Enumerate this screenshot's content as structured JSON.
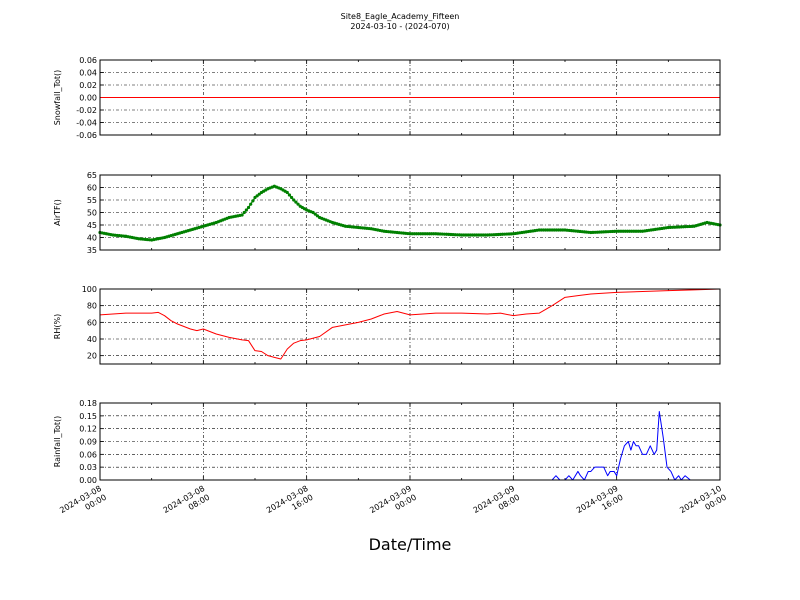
{
  "chart_data": {
    "title": "Site8_Eagle_Academy_Fifteen",
    "subtitle": "2024-03-10 - (2024-070)",
    "xlabel": "Date/Time",
    "x_range": [
      "2024-03-08 00:00",
      "2024-03-10 00:00"
    ],
    "x_ticks": [
      {
        "l1": "2024-03-08",
        "l2": "00:00"
      },
      {
        "l1": "2024-03-08",
        "l2": "08:00"
      },
      {
        "l1": "2024-03-08",
        "l2": "16:00"
      },
      {
        "l1": "2024-03-09",
        "l2": "00:00"
      },
      {
        "l1": "2024-03-09",
        "l2": "08:00"
      },
      {
        "l1": "2024-03-09",
        "l2": "16:00"
      },
      {
        "l1": "2024-03-10",
        "l2": "00:00"
      }
    ],
    "panels": [
      {
        "type": "line",
        "ylabel": "Snowfall_Tot()",
        "color": "#ff0000",
        "marker": false,
        "ylim": [
          -0.06,
          0.06
        ],
        "yticks": [
          "-0.06",
          "-0.04",
          "-0.02",
          "0.00",
          "0.02",
          "0.04",
          "0.06"
        ],
        "grid": true,
        "x_hours": [
          0,
          48
        ],
        "values": [
          0.0,
          0.0
        ]
      },
      {
        "type": "line",
        "ylabel": "AirTF()",
        "color": "#008000",
        "marker": true,
        "ylim": [
          35,
          65
        ],
        "yticks": [
          "35",
          "40",
          "45",
          "50",
          "55",
          "60",
          "65"
        ],
        "grid": true,
        "x_hours": [
          0,
          1,
          2,
          3,
          4,
          5,
          6,
          7,
          8,
          9,
          10,
          11,
          11.5,
          12,
          12.5,
          13,
          13.5,
          14,
          14.5,
          15,
          15.5,
          16,
          16.5,
          17,
          18,
          19,
          20,
          21,
          22,
          23,
          24,
          26,
          28,
          30,
          32,
          34,
          36,
          38,
          40,
          42,
          44,
          46,
          47,
          48
        ],
        "values": [
          42,
          41,
          40.5,
          39.5,
          39,
          40,
          41.5,
          43,
          44.5,
          46,
          48,
          49,
          52,
          56,
          58,
          59.5,
          60.5,
          59.5,
          58,
          55,
          52.5,
          51,
          50,
          48,
          46,
          44.5,
          44,
          43.5,
          42.5,
          42,
          41.5,
          41.5,
          41,
          41,
          41.5,
          43,
          43,
          42,
          42.5,
          42.5,
          44,
          44.5,
          46,
          45
        ]
      },
      {
        "type": "line",
        "ylabel": "RH(%)",
        "color": "#ff0000",
        "marker": false,
        "ylim": [
          10,
          100
        ],
        "yticks": [
          "20",
          "40",
          "60",
          "80",
          "100"
        ],
        "grid": true,
        "x_hours": [
          0,
          2,
          4,
          4.5,
          5,
          5.5,
          6,
          7,
          7.5,
          8,
          9,
          10,
          11,
          11.5,
          12,
          12.5,
          13,
          13.5,
          14,
          14.5,
          15,
          15.5,
          16,
          17,
          18,
          19,
          20,
          21,
          22,
          23,
          24,
          26,
          28,
          30,
          31,
          32,
          33,
          34,
          35,
          36,
          37,
          38,
          40,
          42,
          44,
          46,
          48
        ],
        "values": [
          69,
          71,
          71,
          72,
          68,
          62,
          58,
          52,
          50,
          52,
          46,
          42,
          39,
          38,
          26,
          25,
          20,
          18,
          16,
          28,
          35,
          38,
          39,
          43,
          54,
          57,
          60,
          64,
          70,
          73,
          69,
          71,
          71,
          70,
          71,
          68,
          70,
          71,
          80,
          90,
          92,
          94,
          96,
          97,
          98,
          99,
          100
        ]
      },
      {
        "type": "line",
        "ylabel": "Rainfall_Tot()",
        "color": "#0000ff",
        "marker": false,
        "ylim": [
          0,
          0.18
        ],
        "yticks": [
          "0.00",
          "0.03",
          "0.06",
          "0.09",
          "0.12",
          "0.15",
          "0.18"
        ],
        "grid": true,
        "x_hours": [
          0,
          35,
          35.3,
          35.6,
          36,
          36.3,
          36.6,
          37,
          37.2,
          37.5,
          37.8,
          38,
          38.3,
          38.5,
          39,
          39.3,
          39.5,
          39.8,
          40,
          40.3,
          40.6,
          40.9,
          41.1,
          41.3,
          41.5,
          41.7,
          42,
          42.3,
          42.6,
          42.9,
          43.1,
          43.3,
          43.6,
          43.9,
          44.2,
          44.5,
          44.8,
          45,
          45.3,
          45.7,
          46,
          46.3,
          46.7,
          47,
          47.3,
          47.6,
          48
        ],
        "values": [
          0,
          0,
          0.01,
          0,
          0,
          0.01,
          0,
          0.02,
          0.01,
          0,
          0.02,
          0.02,
          0.03,
          0.03,
          0.03,
          0.01,
          0.02,
          0.02,
          0.01,
          0.05,
          0.08,
          0.09,
          0.07,
          0.09,
          0.08,
          0.08,
          0.06,
          0.06,
          0.08,
          0.06,
          0.07,
          0.16,
          0.1,
          0.03,
          0.02,
          0,
          0.01,
          0,
          0.01,
          0,
          0,
          0,
          0,
          0,
          0,
          0,
          0
        ]
      }
    ]
  }
}
